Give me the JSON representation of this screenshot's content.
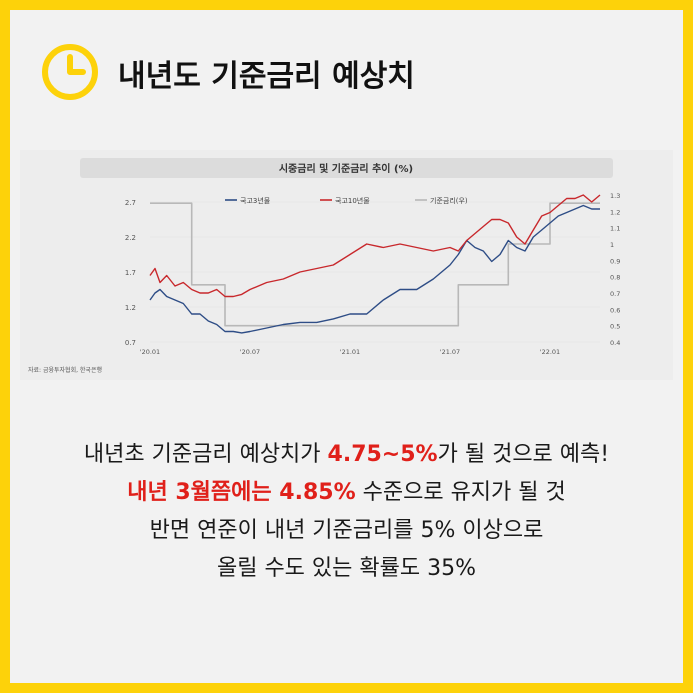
{
  "title": "내년도 기준금리 예상치",
  "colors": {
    "frame": "#FDD20A",
    "accent_red": "#E0201A",
    "series_3y": "#2E4D86",
    "series_10y": "#C8282C",
    "base_rate": "#B8B8B8"
  },
  "chart_data": {
    "type": "line",
    "title": "시중금리 및 기준금리 추이 (%)",
    "source_note": "자료: 금융투자협회, 한국은행",
    "x_ticks": [
      "'20.01",
      "'20.07",
      "'21.01",
      "'21.07",
      "'22.01"
    ],
    "y_left_ticks": [
      "2.7",
      "2.2",
      "1.7",
      "1.2",
      "0.7"
    ],
    "y_left_lim": [
      0.7,
      2.8
    ],
    "y_right_ticks": [
      "1.3",
      "1.2",
      "1.1",
      "1",
      "0.9",
      "0.8",
      "0.7",
      "0.6",
      "0.5",
      "0.4"
    ],
    "y_right_lim": [
      0.4,
      1.3
    ],
    "legend": [
      "국고3년물",
      "국고10년물",
      "기준금리(우)"
    ],
    "legend_position": "top",
    "series": [
      {
        "name": "국고3년물",
        "axis": "left",
        "x": [
          0,
          0.3,
          0.6,
          1,
          1.5,
          2,
          2.5,
          3,
          3.5,
          4,
          4.5,
          5,
          5.5,
          6,
          7,
          8,
          9,
          10,
          11,
          12,
          13,
          14,
          15,
          16,
          17,
          18,
          18.5,
          19,
          19.5,
          20,
          20.5,
          21,
          21.5,
          22,
          22.5,
          23,
          23.5,
          24,
          24.5,
          25,
          25.5,
          26,
          26.5,
          27
        ],
        "y": [
          1.3,
          1.4,
          1.45,
          1.35,
          1.3,
          1.25,
          1.1,
          1.1,
          1.0,
          0.95,
          0.85,
          0.85,
          0.83,
          0.85,
          0.9,
          0.95,
          0.98,
          0.98,
          1.03,
          1.1,
          1.1,
          1.3,
          1.45,
          1.45,
          1.6,
          1.8,
          1.95,
          2.15,
          2.05,
          2.0,
          1.85,
          1.95,
          2.15,
          2.05,
          2.0,
          2.2,
          2.3,
          2.4,
          2.5,
          2.55,
          2.6,
          2.65,
          2.6,
          2.6
        ]
      },
      {
        "name": "국고10년물",
        "axis": "left",
        "x": [
          0,
          0.3,
          0.6,
          1,
          1.5,
          2,
          2.5,
          3,
          3.5,
          4,
          4.5,
          5,
          5.5,
          6,
          7,
          8,
          9,
          10,
          11,
          12,
          13,
          14,
          15,
          16,
          17,
          18,
          18.5,
          19,
          19.5,
          20,
          20.5,
          21,
          21.5,
          22,
          22.5,
          23,
          23.5,
          24,
          24.5,
          25,
          25.5,
          26,
          26.5,
          27
        ],
        "y": [
          1.65,
          1.75,
          1.55,
          1.65,
          1.5,
          1.55,
          1.45,
          1.4,
          1.4,
          1.45,
          1.35,
          1.35,
          1.38,
          1.45,
          1.55,
          1.6,
          1.7,
          1.75,
          1.8,
          1.95,
          2.1,
          2.05,
          2.1,
          2.05,
          2.0,
          2.05,
          2.0,
          2.15,
          2.25,
          2.35,
          2.45,
          2.45,
          2.4,
          2.2,
          2.1,
          2.3,
          2.5,
          2.55,
          2.65,
          2.75,
          2.75,
          2.8,
          2.7,
          2.8
        ]
      },
      {
        "name": "기준금리(우)",
        "axis": "right",
        "x": [
          0,
          2.5,
          2.5,
          4.5,
          4.5,
          18.5,
          18.5,
          21.5,
          21.5,
          24,
          24,
          27
        ],
        "y": [
          1.25,
          1.25,
          0.75,
          0.75,
          0.5,
          0.5,
          0.75,
          0.75,
          1.0,
          1.0,
          1.25,
          1.25
        ]
      }
    ]
  },
  "body": {
    "line1_pre": "내년초 기준금리 예상치가 ",
    "line1_highlight": "4.75~5%",
    "line1_post": "가 될 것으로 예측!",
    "line2_highlight": "내년 3월쯤에는 4.85%",
    "line2_post": " 수준으로 유지가 될 것",
    "line3": "반면 연준이 내년 기준금리를 5% 이상으로",
    "line4": "올릴 수도 있는 확률도 35%"
  }
}
